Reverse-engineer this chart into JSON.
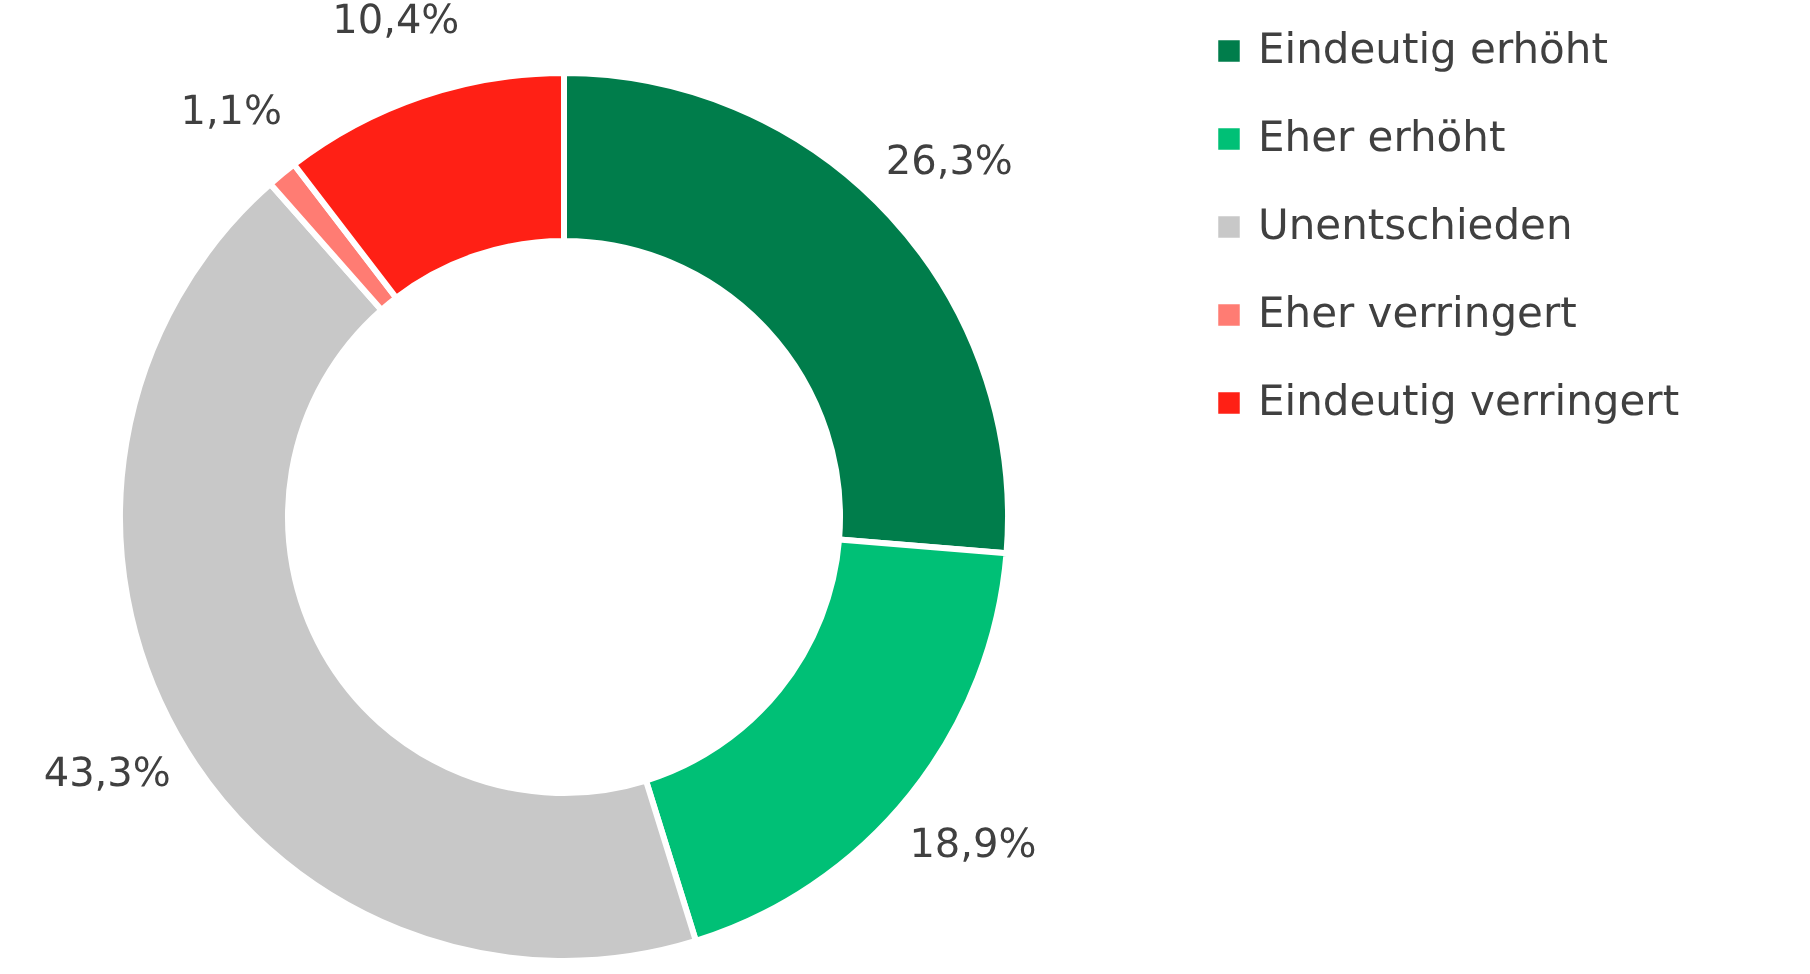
{
  "chart_data": {
    "type": "donut",
    "categories": [
      "Eindeutig erhöht",
      "Eher erhöht",
      "Unentschieden",
      "Eher verringert",
      "Eindeutig verringert"
    ],
    "values": [
      26.3,
      18.9,
      43.3,
      1.1,
      10.4
    ],
    "colors": [
      "#007d4b",
      "#00c076",
      "#c8c8c8",
      "#ff7c73",
      "#ff2015"
    ],
    "value_labels": [
      "26,3%",
      "18,9%",
      "43,3%",
      "1,1%",
      "10,4%"
    ],
    "legend": "right"
  }
}
